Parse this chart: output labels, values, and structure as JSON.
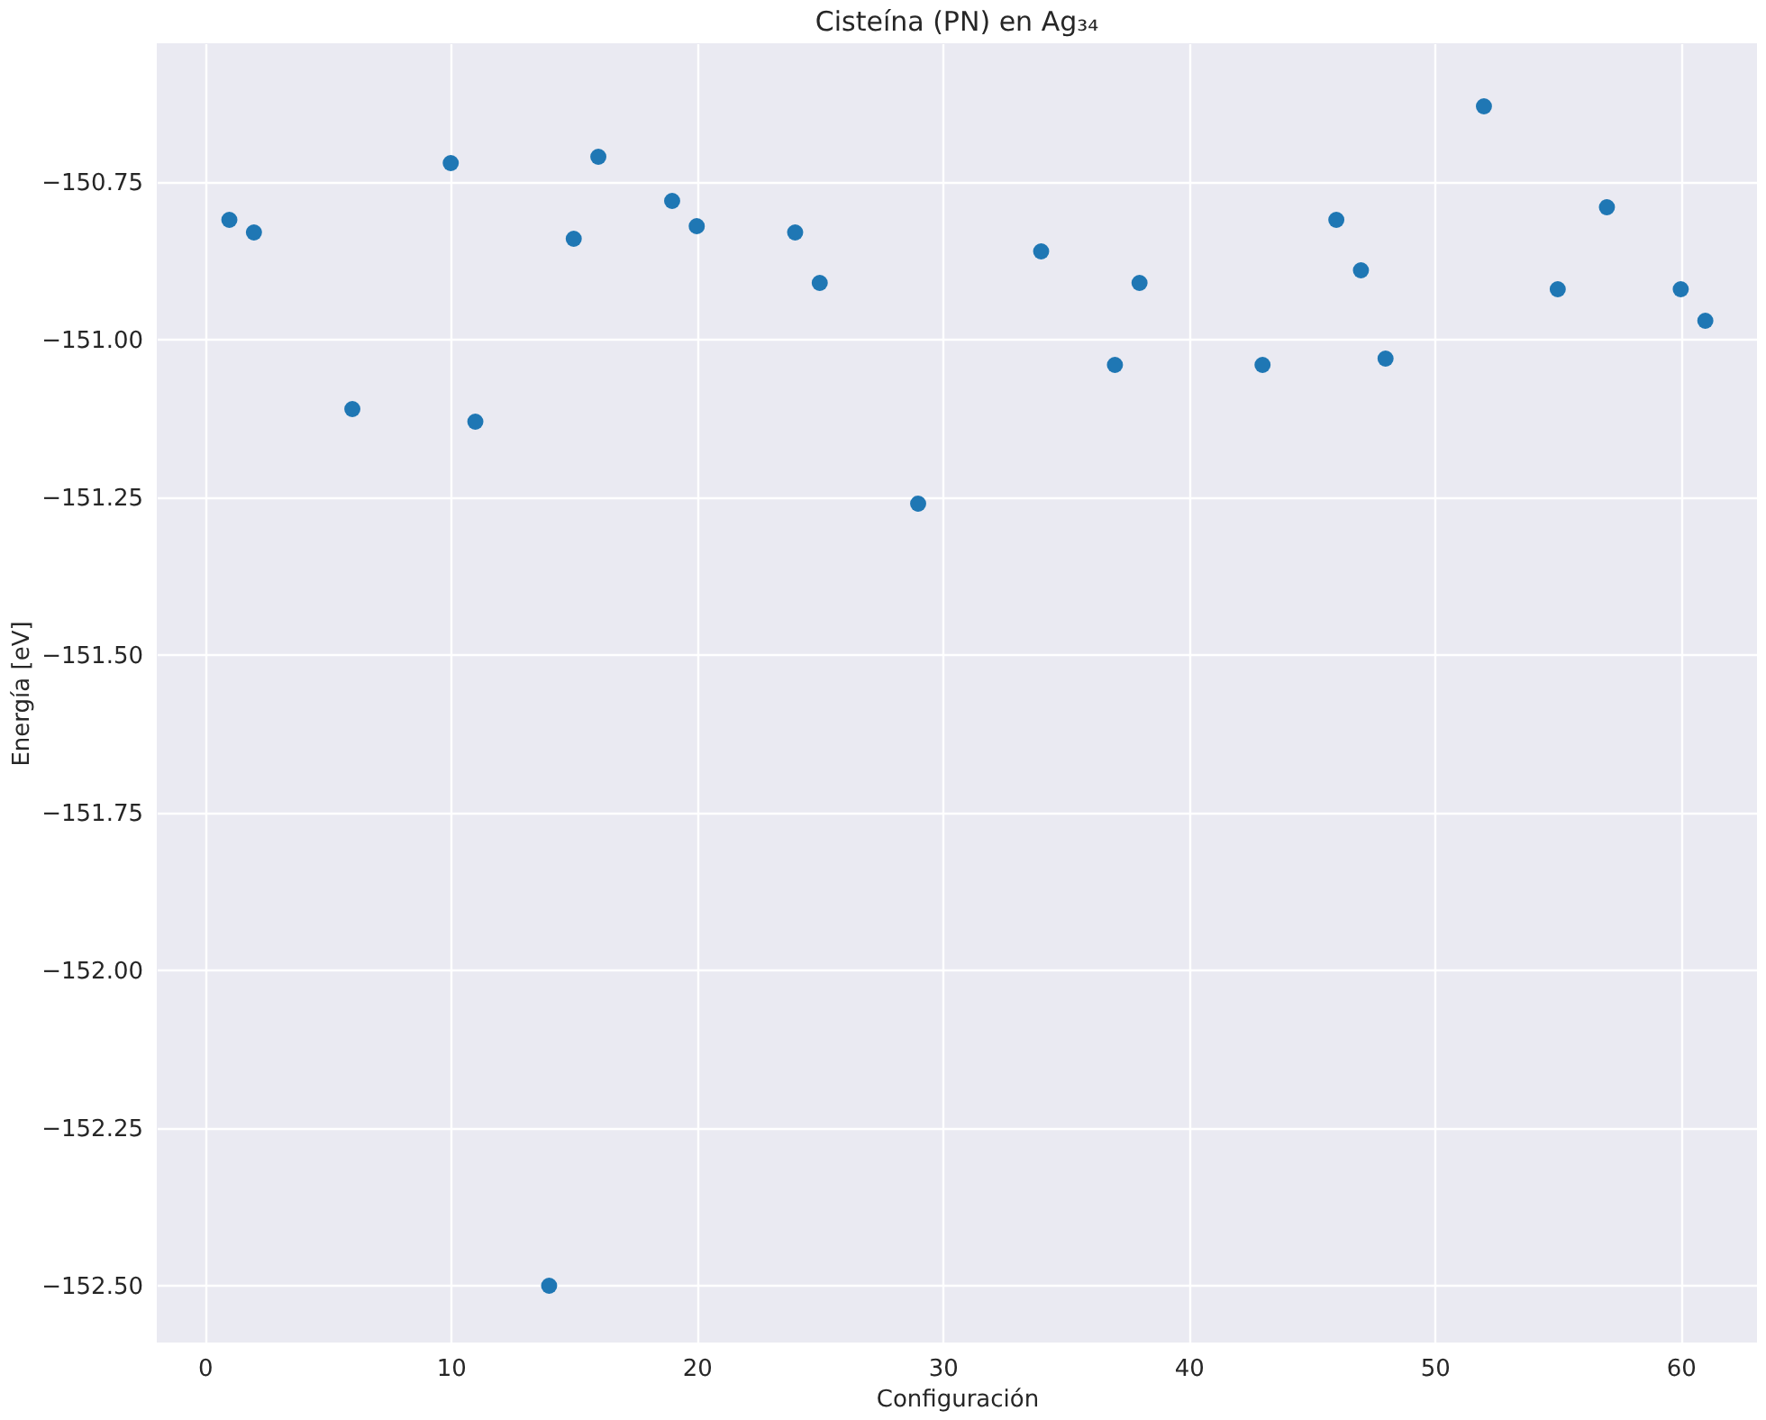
{
  "chart_data": {
    "type": "scatter",
    "title": "Cisteína (PN) en Ag₃₄",
    "xlabel": "Configuración",
    "ylabel": "Energía [eV]",
    "x": [
      1,
      2,
      6,
      10,
      11,
      14,
      15,
      16,
      19,
      20,
      24,
      25,
      29,
      34,
      37,
      38,
      43,
      46,
      47,
      48,
      52,
      55,
      57,
      60,
      61
    ],
    "series": [
      {
        "color": "#1f77b4",
        "values": [
          -150.81,
          -150.83,
          -151.11,
          -150.72,
          -151.13,
          -152.5,
          -150.84,
          -150.71,
          -150.78,
          -150.82,
          -150.83,
          -150.91,
          -151.26,
          -150.86,
          -151.04,
          -150.91,
          -151.04,
          -150.81,
          -150.89,
          -151.03,
          -150.63,
          -150.92,
          -150.79,
          -150.92,
          -150.97
        ]
      }
    ],
    "xlim": [
      -1.95,
      63.1
    ],
    "ylim": [
      -152.59,
      -150.53
    ],
    "xticks": [
      0,
      10,
      20,
      30,
      40,
      50,
      60
    ],
    "yticks": [
      {
        "value": -150.75,
        "label": "−150.75"
      },
      {
        "value": -151.0,
        "label": "−151.00"
      },
      {
        "value": -151.25,
        "label": "−151.25"
      },
      {
        "value": -151.5,
        "label": "−151.50"
      },
      {
        "value": -151.75,
        "label": "−151.75"
      },
      {
        "value": -152.0,
        "label": "−152.00"
      },
      {
        "value": -152.25,
        "label": "−152.25"
      },
      {
        "value": -152.5,
        "label": "−152.50"
      }
    ],
    "grid": true,
    "marker": "circle"
  }
}
